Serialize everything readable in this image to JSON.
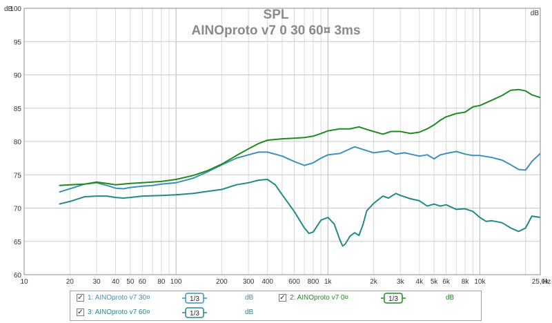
{
  "chart_data": {
    "type": "line",
    "title": "SPL",
    "subtitle": "AINOproto v7 0 30 60¤ 3ms",
    "ylabel": "dB",
    "xunit": "Hz",
    "xscale": "log",
    "xlim": [
      10,
      25000
    ],
    "ylim": [
      60,
      100
    ],
    "grid": true,
    "x_tick_labels": [
      "10",
      "20",
      "30",
      "40",
      "50",
      "60",
      "80",
      "100",
      "200",
      "300",
      "400",
      "600",
      "800",
      "1k",
      "2k",
      "3k",
      "4k",
      "5k",
      "6k",
      "8k",
      "10k",
      "25,0k"
    ],
    "y_tick_labels": [
      "60",
      "65",
      "70",
      "75",
      "80",
      "85",
      "90",
      "95",
      "100"
    ],
    "series": [
      {
        "name": "1: AINOproto v7 30¤",
        "color": "#3a8fbf",
        "points": [
          [
            17,
            72.4
          ],
          [
            20,
            72.9
          ],
          [
            25,
            73.6
          ],
          [
            30,
            73.8
          ],
          [
            35,
            73.4
          ],
          [
            40,
            73.0
          ],
          [
            45,
            72.9
          ],
          [
            50,
            73.1
          ],
          [
            60,
            73.3
          ],
          [
            70,
            73.4
          ],
          [
            80,
            73.6
          ],
          [
            100,
            73.8
          ],
          [
            130,
            74.5
          ],
          [
            160,
            75.4
          ],
          [
            200,
            76.5
          ],
          [
            250,
            77.5
          ],
          [
            300,
            78.0
          ],
          [
            350,
            78.4
          ],
          [
            400,
            78.4
          ],
          [
            500,
            77.8
          ],
          [
            600,
            77.0
          ],
          [
            700,
            76.4
          ],
          [
            800,
            76.8
          ],
          [
            900,
            77.5
          ],
          [
            1000,
            78.0
          ],
          [
            1200,
            78.2
          ],
          [
            1400,
            78.9
          ],
          [
            1500,
            79.2
          ],
          [
            1700,
            78.8
          ],
          [
            2000,
            78.3
          ],
          [
            2500,
            78.6
          ],
          [
            2800,
            78.1
          ],
          [
            3200,
            78.3
          ],
          [
            3500,
            78.1
          ],
          [
            4000,
            77.8
          ],
          [
            4500,
            78.0
          ],
          [
            5000,
            77.4
          ],
          [
            5500,
            78.0
          ],
          [
            6000,
            78.2
          ],
          [
            7000,
            78.5
          ],
          [
            8000,
            78.1
          ],
          [
            9000,
            77.9
          ],
          [
            10000,
            77.9
          ],
          [
            12000,
            77.6
          ],
          [
            14000,
            77.2
          ],
          [
            16000,
            76.5
          ],
          [
            18000,
            75.8
          ],
          [
            20000,
            75.7
          ],
          [
            22000,
            77.0
          ],
          [
            25000,
            78.2
          ]
        ]
      },
      {
        "name": "2: AINOproto v7 0¤",
        "color": "#1e8a1e",
        "points": [
          [
            17,
            73.4
          ],
          [
            20,
            73.5
          ],
          [
            25,
            73.6
          ],
          [
            30,
            73.9
          ],
          [
            35,
            73.7
          ],
          [
            40,
            73.5
          ],
          [
            50,
            73.7
          ],
          [
            60,
            73.8
          ],
          [
            80,
            74.0
          ],
          [
            100,
            74.3
          ],
          [
            130,
            74.9
          ],
          [
            160,
            75.6
          ],
          [
            200,
            76.6
          ],
          [
            250,
            77.9
          ],
          [
            300,
            78.9
          ],
          [
            350,
            79.7
          ],
          [
            400,
            80.2
          ],
          [
            500,
            80.4
          ],
          [
            600,
            80.5
          ],
          [
            700,
            80.6
          ],
          [
            800,
            80.8
          ],
          [
            900,
            81.2
          ],
          [
            1000,
            81.6
          ],
          [
            1200,
            81.9
          ],
          [
            1400,
            81.9
          ],
          [
            1600,
            82.2
          ],
          [
            1800,
            81.8
          ],
          [
            2000,
            81.5
          ],
          [
            2300,
            81.1
          ],
          [
            2600,
            81.5
          ],
          [
            3000,
            81.5
          ],
          [
            3500,
            81.2
          ],
          [
            4000,
            81.4
          ],
          [
            4500,
            81.9
          ],
          [
            5000,
            82.5
          ],
          [
            5500,
            83.2
          ],
          [
            6000,
            83.7
          ],
          [
            7000,
            84.2
          ],
          [
            8000,
            84.4
          ],
          [
            9000,
            85.2
          ],
          [
            10000,
            85.4
          ],
          [
            12000,
            86.2
          ],
          [
            14000,
            86.9
          ],
          [
            16000,
            87.7
          ],
          [
            18000,
            87.8
          ],
          [
            20000,
            87.6
          ],
          [
            22000,
            87.0
          ],
          [
            25000,
            86.6
          ]
        ]
      },
      {
        "name": "3: AINOproto v7 60¤",
        "color": "#1e8a86",
        "points": [
          [
            17,
            70.6
          ],
          [
            20,
            71.0
          ],
          [
            25,
            71.7
          ],
          [
            30,
            71.8
          ],
          [
            35,
            71.8
          ],
          [
            40,
            71.6
          ],
          [
            45,
            71.5
          ],
          [
            50,
            71.6
          ],
          [
            60,
            71.8
          ],
          [
            80,
            71.9
          ],
          [
            100,
            72.0
          ],
          [
            130,
            72.2
          ],
          [
            160,
            72.5
          ],
          [
            200,
            72.8
          ],
          [
            250,
            73.5
          ],
          [
            300,
            73.8
          ],
          [
            350,
            74.2
          ],
          [
            400,
            74.3
          ],
          [
            450,
            73.5
          ],
          [
            500,
            72.0
          ],
          [
            600,
            69.5
          ],
          [
            700,
            67.0
          ],
          [
            750,
            66.2
          ],
          [
            800,
            66.4
          ],
          [
            900,
            68.2
          ],
          [
            1000,
            68.6
          ],
          [
            1100,
            67.6
          ],
          [
            1200,
            65.2
          ],
          [
            1250,
            64.3
          ],
          [
            1300,
            64.6
          ],
          [
            1400,
            65.8
          ],
          [
            1500,
            66.3
          ],
          [
            1600,
            65.9
          ],
          [
            1700,
            67.5
          ],
          [
            1800,
            69.6
          ],
          [
            2000,
            70.7
          ],
          [
            2300,
            71.8
          ],
          [
            2500,
            71.5
          ],
          [
            2800,
            72.2
          ],
          [
            3000,
            71.9
          ],
          [
            3500,
            71.4
          ],
          [
            4000,
            71.1
          ],
          [
            4500,
            70.3
          ],
          [
            5000,
            70.6
          ],
          [
            5500,
            70.3
          ],
          [
            6000,
            70.5
          ],
          [
            7000,
            69.8
          ],
          [
            8000,
            69.9
          ],
          [
            9000,
            69.5
          ],
          [
            10000,
            68.6
          ],
          [
            11000,
            68.0
          ],
          [
            12000,
            68.1
          ],
          [
            14000,
            67.8
          ],
          [
            16000,
            67.0
          ],
          [
            18000,
            66.5
          ],
          [
            20000,
            67.0
          ],
          [
            22000,
            68.8
          ],
          [
            25000,
            68.6
          ]
        ]
      }
    ]
  },
  "legend": {
    "items": [
      {
        "label": "1: AINOproto v7 30¤",
        "smoothing": "1/3",
        "unit": "dB",
        "checked": true,
        "color": "#3a8fbf"
      },
      {
        "label": "2: AINOproto v7 0¤",
        "smoothing": "1/3",
        "unit": "dB",
        "checked": true,
        "color": "#1e8a1e"
      },
      {
        "label": "3: AINOproto v7 60¤",
        "smoothing": "1/3",
        "unit": "dB",
        "checked": true,
        "color": "#1e8a86"
      }
    ]
  }
}
